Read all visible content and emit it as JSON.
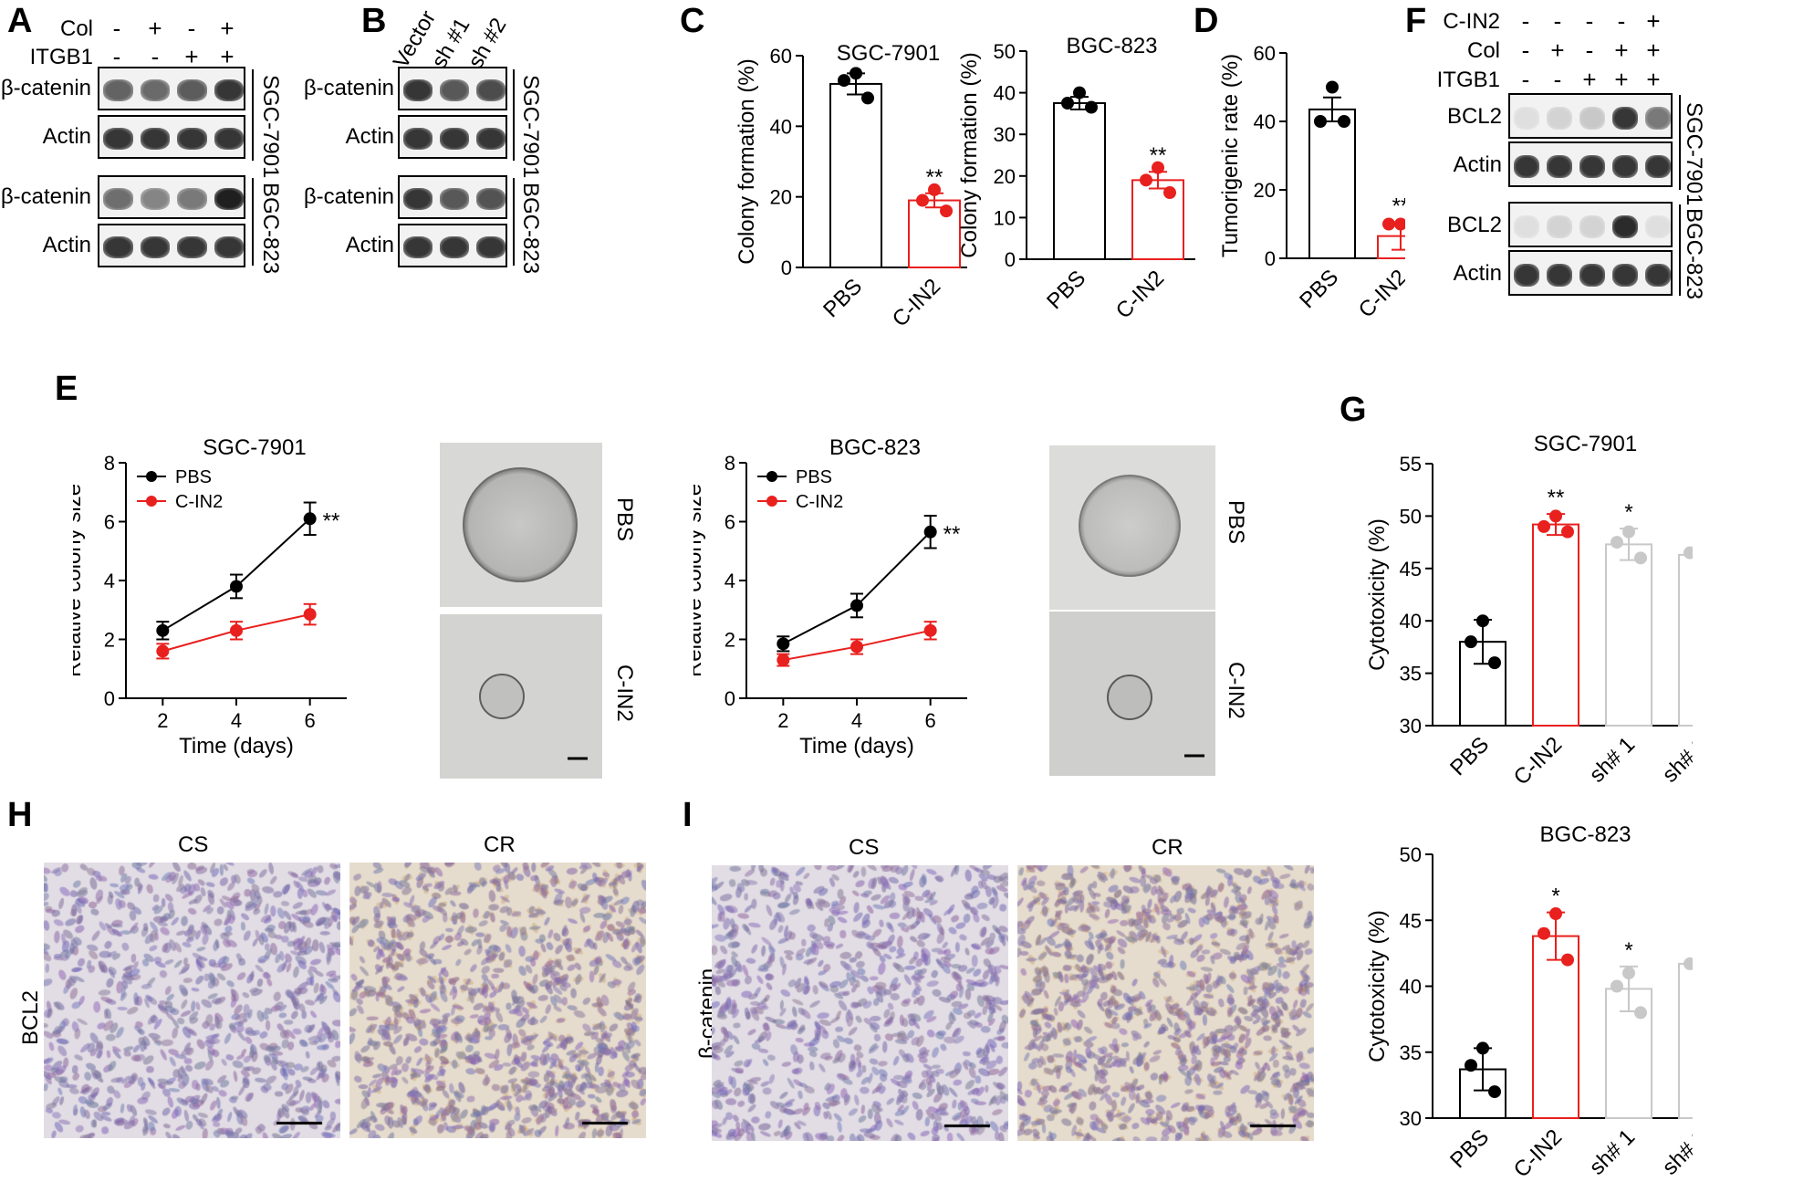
{
  "panels": {
    "A": {
      "letter": "A",
      "row_labels": [
        "Col",
        "ITGB1"
      ],
      "signs": [
        [
          "-",
          "+",
          "-",
          "+"
        ],
        [
          "-",
          "-",
          "+",
          "+"
        ]
      ],
      "blots": [
        {
          "label": "β-catenin",
          "group": "SGC-7901",
          "bands": [
            0.65,
            0.62,
            0.68,
            0.85
          ]
        },
        {
          "label": "Actin",
          "group": "SGC-7901",
          "bands": [
            0.85,
            0.85,
            0.85,
            0.85
          ]
        },
        {
          "label": "β-catenin",
          "group": "BGC-823",
          "bands": [
            0.6,
            0.5,
            0.55,
            0.95
          ]
        },
        {
          "label": "Actin",
          "group": "BGC-823",
          "bands": [
            0.85,
            0.85,
            0.85,
            0.85
          ]
        }
      ],
      "groups": [
        "SGC-7901",
        "BGC-823"
      ]
    },
    "B": {
      "letter": "B",
      "lanes": [
        "Vector",
        "sh #1",
        "sh #2"
      ],
      "blots": [
        {
          "label": "β-catenin",
          "bands": [
            0.85,
            0.7,
            0.75
          ]
        },
        {
          "label": "Actin",
          "bands": [
            0.85,
            0.85,
            0.85
          ]
        },
        {
          "label": "β-catenin",
          "bands": [
            0.85,
            0.7,
            0.72
          ]
        },
        {
          "label": "Actin",
          "bands": [
            0.85,
            0.85,
            0.85
          ]
        }
      ],
      "groups": [
        "SGC-7901",
        "BGC-823"
      ]
    },
    "C": {
      "letter": "C"
    },
    "D": {
      "letter": "D"
    },
    "E": {
      "letter": "E",
      "micro_labels": [
        "PBS",
        "C-IN2"
      ]
    },
    "F": {
      "letter": "F",
      "row_labels": [
        "C-IN2",
        "Col",
        "ITGB1"
      ],
      "signs": [
        [
          "-",
          "-",
          "-",
          "-",
          "+"
        ],
        [
          "-",
          "+",
          "-",
          "+",
          "+"
        ],
        [
          "-",
          "-",
          "+",
          "+",
          "+"
        ]
      ],
      "blots": [
        {
          "label": "BCL2",
          "bands": [
            0.1,
            0.15,
            0.2,
            0.85,
            0.55
          ]
        },
        {
          "label": "Actin",
          "bands": [
            0.85,
            0.85,
            0.85,
            0.85,
            0.85
          ]
        },
        {
          "label": "BCL2",
          "bands": [
            0.1,
            0.15,
            0.15,
            0.9,
            0.1
          ]
        },
        {
          "label": "Actin",
          "bands": [
            0.85,
            0.85,
            0.85,
            0.85,
            0.85
          ]
        }
      ],
      "groups": [
        "SGC-7901",
        "BGC-823"
      ]
    },
    "G": {
      "letter": "G"
    },
    "H": {
      "letter": "H",
      "cols": [
        "CS",
        "CR"
      ],
      "row_label": "BCL2"
    },
    "I": {
      "letter": "I",
      "cols": [
        "CS",
        "CR"
      ],
      "row_label": "β-catenin"
    }
  },
  "chart_data": [
    {
      "id": "C1",
      "type": "bar",
      "title": "SGC-7901",
      "ylabel": "Colony formation (%)",
      "categories": [
        "PBS",
        "C-IN2"
      ],
      "values": [
        52,
        19
      ],
      "errors": [
        3,
        2
      ],
      "points": [
        [
          55,
          53,
          48
        ],
        [
          22,
          19,
          16
        ]
      ],
      "ylim": [
        0,
        60
      ],
      "yticks": [
        0,
        20,
        40,
        60
      ],
      "sig": [
        "",
        "**"
      ],
      "colors": [
        "#000000",
        "#e8201e"
      ]
    },
    {
      "id": "C2",
      "type": "bar",
      "title": "BGC-823",
      "ylabel": "Colony formation (%)",
      "categories": [
        "PBS",
        "C-IN2"
      ],
      "values": [
        37.5,
        19
      ],
      "errors": [
        1.5,
        2
      ],
      "points": [
        [
          40,
          37.5,
          36.5
        ],
        [
          22,
          19,
          16
        ]
      ],
      "ylim": [
        0,
        50
      ],
      "yticks": [
        0,
        10,
        20,
        30,
        40,
        50
      ],
      "sig": [
        "",
        "**"
      ],
      "colors": [
        "#000000",
        "#e8201e"
      ]
    },
    {
      "id": "D",
      "type": "bar",
      "title": "",
      "ylabel": "Tumorigenic rate (%)",
      "categories": [
        "PBS",
        "C-IN2"
      ],
      "values": [
        43.5,
        6.5
      ],
      "errors": [
        3.5,
        4
      ],
      "points": [
        [
          50,
          40,
          40
        ],
        [
          10,
          10,
          0
        ]
      ],
      "ylim": [
        0,
        60
      ],
      "yticks": [
        0,
        20,
        40,
        60
      ],
      "sig": [
        "",
        "**"
      ],
      "colors": [
        "#000000",
        "#e8201e"
      ]
    },
    {
      "id": "E1",
      "type": "line",
      "title": "SGC-7901",
      "xlabel": "Time (days)",
      "ylabel": "Relative colony size",
      "x": [
        2,
        4,
        6
      ],
      "xlim": [
        1,
        7
      ],
      "ylim": [
        0,
        8
      ],
      "xticks": [
        2,
        4,
        6
      ],
      "yticks": [
        0,
        2,
        4,
        6,
        8
      ],
      "series": [
        {
          "name": "PBS",
          "values": [
            2.3,
            3.8,
            6.1
          ],
          "errors": [
            0.3,
            0.4,
            0.55
          ],
          "color": "#000000"
        },
        {
          "name": "C-IN2",
          "values": [
            1.6,
            2.3,
            2.85
          ],
          "errors": [
            0.25,
            0.3,
            0.35
          ],
          "color": "#e8201e"
        }
      ],
      "annotation": "**"
    },
    {
      "id": "E2",
      "type": "line",
      "title": "BGC-823",
      "xlabel": "Time (days)",
      "ylabel": "Relative colony size",
      "x": [
        2,
        4,
        6
      ],
      "xlim": [
        1,
        7
      ],
      "ylim": [
        0,
        8
      ],
      "xticks": [
        2,
        4,
        6
      ],
      "yticks": [
        0,
        2,
        4,
        6,
        8
      ],
      "series": [
        {
          "name": "PBS",
          "values": [
            1.85,
            3.15,
            5.65
          ],
          "errors": [
            0.25,
            0.4,
            0.55
          ],
          "color": "#000000"
        },
        {
          "name": "C-IN2",
          "values": [
            1.3,
            1.75,
            2.3
          ],
          "errors": [
            0.2,
            0.25,
            0.3
          ],
          "color": "#e8201e"
        }
      ],
      "annotation": "**"
    },
    {
      "id": "G1",
      "type": "bar",
      "title": "SGC-7901",
      "ylabel": "Cytotoxicity (%)",
      "categories": [
        "PBS",
        "C-IN2",
        "sh# 1",
        "sh# 2"
      ],
      "values": [
        38,
        49.2,
        47.3,
        46.3
      ],
      "errors": [
        2.1,
        1.0,
        1.5,
        1.6
      ],
      "points": [
        [
          40,
          38,
          36
        ],
        [
          50,
          49,
          48.5
        ],
        [
          48.5,
          47.5,
          46
        ],
        [
          47.5,
          46.5,
          45
        ]
      ],
      "ylim": [
        30,
        55
      ],
      "yticks": [
        30,
        35,
        40,
        45,
        50,
        55
      ],
      "sig": [
        "",
        "**",
        "*",
        "*"
      ],
      "colors": [
        "#000000",
        "#e8201e",
        "#c8c8c8",
        "#c8c8c8"
      ]
    },
    {
      "id": "G2",
      "type": "bar",
      "title": "BGC-823",
      "ylabel": "Cytotoxicity (%)",
      "categories": [
        "PBS",
        "C-IN2",
        "sh# 1",
        "sh# 2"
      ],
      "values": [
        33.7,
        43.8,
        39.8,
        41.7
      ],
      "errors": [
        1.6,
        1.8,
        1.7,
        1.4
      ],
      "points": [
        [
          35.3,
          34,
          32
        ],
        [
          45.5,
          44,
          42
        ],
        [
          41,
          40,
          38
        ],
        [
          43,
          41.7,
          40.5
        ]
      ],
      "ylim": [
        30,
        50
      ],
      "yticks": [
        30,
        35,
        40,
        45,
        50
      ],
      "sig": [
        "",
        "*",
        "*",
        "*"
      ],
      "colors": [
        "#000000",
        "#e8201e",
        "#c8c8c8",
        "#c8c8c8"
      ]
    }
  ]
}
